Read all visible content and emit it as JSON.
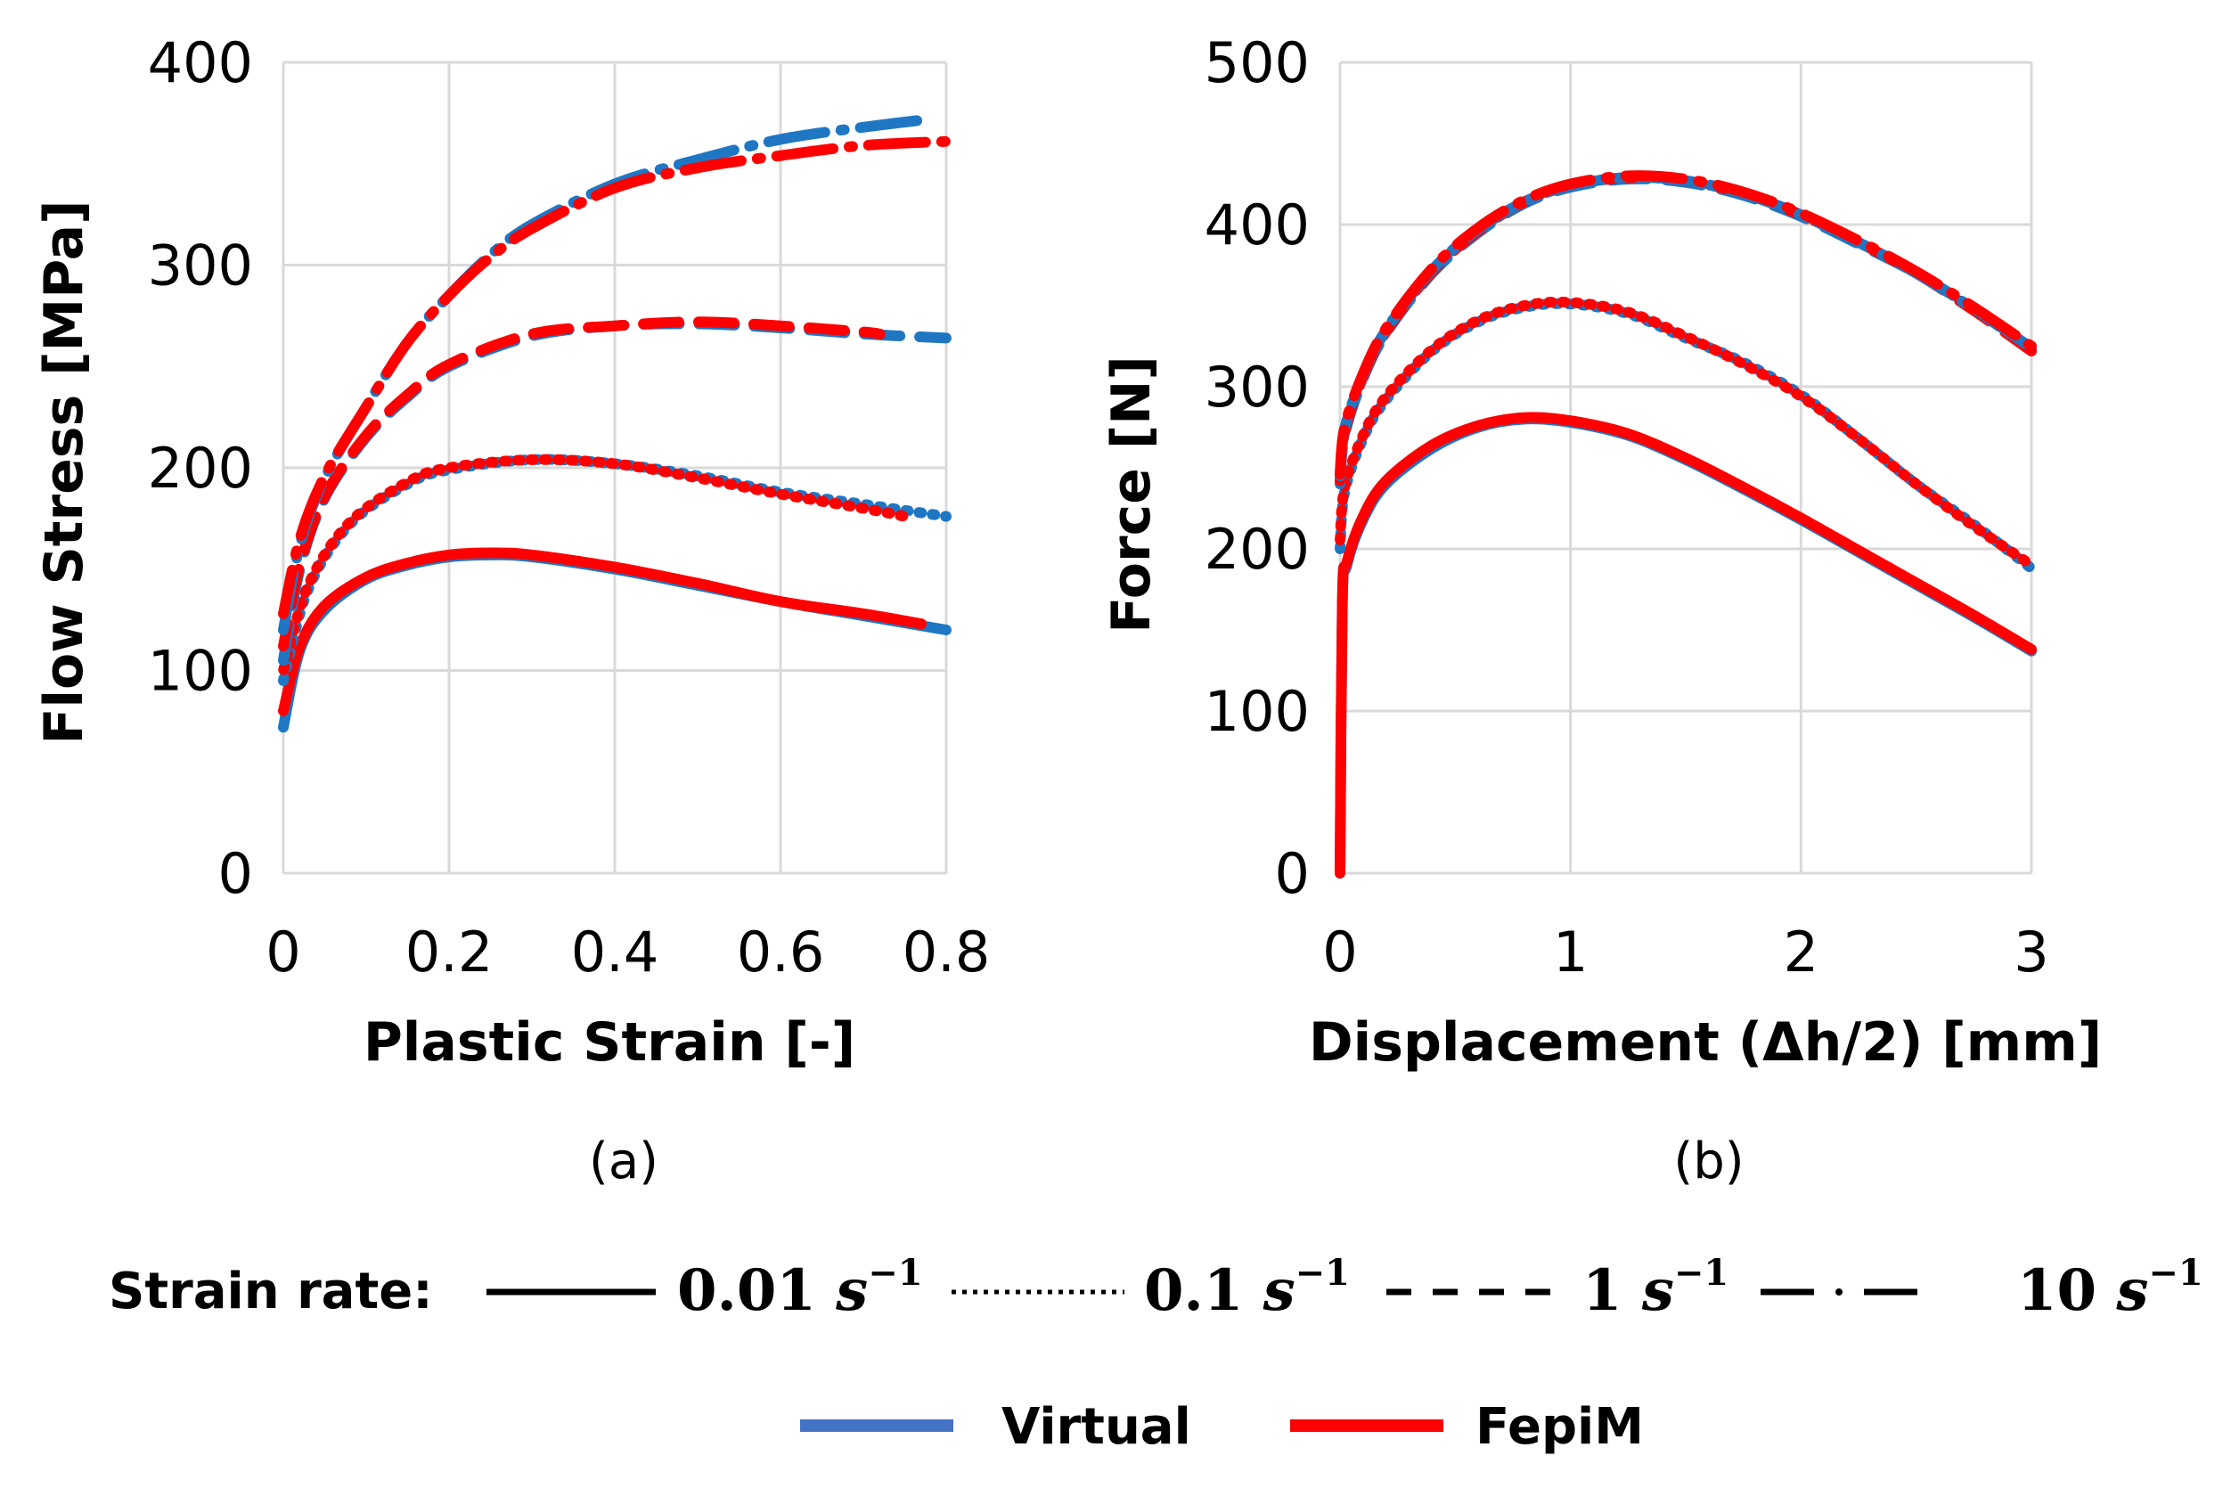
{
  "chart_data": [
    {
      "type": "line",
      "panel_label": "(a)",
      "xlabel": "Plastic Strain [-]",
      "ylabel": "Flow Stress [MPa]",
      "xlim": [
        0,
        0.8
      ],
      "ylim": [
        0,
        400
      ],
      "xticks": [
        "0",
        "0.2",
        "0.4",
        "0.6",
        "0.8"
      ],
      "yticks": [
        "0",
        "100",
        "200",
        "300",
        "400"
      ],
      "grid": true,
      "series": [
        {
          "name": "Virtual 0.01 s^-1",
          "model": "Virtual",
          "rate": "0.01",
          "x": [
            0,
            0.02,
            0.05,
            0.1,
            0.15,
            0.2,
            0.25,
            0.3,
            0.4,
            0.5,
            0.6,
            0.7,
            0.8
          ],
          "y": [
            72,
            110,
            130,
            145,
            152,
            156,
            157,
            156,
            150,
            142,
            134,
            127,
            120
          ]
        },
        {
          "name": "FepiM 0.01 s^-1",
          "model": "FepiM",
          "rate": "0.01",
          "x": [
            0,
            0.02,
            0.05,
            0.1,
            0.15,
            0.2,
            0.25,
            0.3,
            0.4,
            0.5,
            0.6,
            0.7,
            0.77
          ],
          "y": [
            80,
            112,
            132,
            146,
            153,
            157,
            158,
            157,
            151,
            143,
            134,
            128,
            123
          ]
        },
        {
          "name": "Virtual 0.1 s^-1",
          "model": "Virtual",
          "rate": "0.1",
          "x": [
            0,
            0.03,
            0.08,
            0.15,
            0.2,
            0.3,
            0.4,
            0.5,
            0.6,
            0.7,
            0.8
          ],
          "y": [
            95,
            140,
            172,
            192,
            199,
            204,
            202,
            196,
            188,
            182,
            176
          ]
        },
        {
          "name": "FepiM 0.1 s^-1",
          "model": "FepiM",
          "rate": "0.1",
          "x": [
            0,
            0.03,
            0.08,
            0.15,
            0.2,
            0.3,
            0.4,
            0.5,
            0.6,
            0.7,
            0.75
          ],
          "y": [
            100,
            142,
            173,
            193,
            200,
            204,
            202,
            195,
            187,
            180,
            176
          ]
        },
        {
          "name": "Virtual 1 s^-1",
          "model": "Virtual",
          "rate": "1",
          "x": [
            0,
            0.02,
            0.05,
            0.1,
            0.15,
            0.2,
            0.3,
            0.4,
            0.5,
            0.6,
            0.7,
            0.8
          ],
          "y": [
            105,
            150,
            185,
            215,
            235,
            250,
            265,
            270,
            271,
            269,
            266,
            264
          ]
        },
        {
          "name": "FepiM 1 s^-1",
          "model": "FepiM",
          "rate": "1",
          "x": [
            0,
            0.02,
            0.05,
            0.1,
            0.15,
            0.2,
            0.3,
            0.4,
            0.5,
            0.6,
            0.7,
            0.72
          ],
          "y": [
            112,
            152,
            186,
            216,
            236,
            251,
            266,
            270,
            272,
            270,
            267,
            266
          ]
        },
        {
          "name": "Virtual 10 s^-1",
          "model": "Virtual",
          "rate": "10",
          "x": [
            0,
            0.02,
            0.05,
            0.1,
            0.15,
            0.2,
            0.25,
            0.3,
            0.4,
            0.5,
            0.6,
            0.7,
            0.78
          ],
          "y": [
            120,
            162,
            195,
            230,
            262,
            285,
            305,
            320,
            340,
            352,
            362,
            368,
            372
          ]
        },
        {
          "name": "FepiM 10 s^-1",
          "model": "FepiM",
          "rate": "10",
          "x": [
            0,
            0.02,
            0.05,
            0.1,
            0.15,
            0.2,
            0.25,
            0.3,
            0.4,
            0.5,
            0.6,
            0.7,
            0.8
          ],
          "y": [
            128,
            165,
            196,
            230,
            262,
            285,
            304,
            318,
            338,
            348,
            354,
            359,
            361
          ]
        }
      ]
    },
    {
      "type": "line",
      "panel_label": "(b)",
      "xlabel": "Displacement (Δh/2) [mm]",
      "ylabel": "Force [N]",
      "xlim": [
        0,
        3
      ],
      "ylim": [
        0,
        500
      ],
      "xticks": [
        "0",
        "1",
        "2",
        "3"
      ],
      "yticks": [
        "0",
        "100",
        "200",
        "300",
        "400",
        "500"
      ],
      "grid": true,
      "series": [
        {
          "name": "Virtual 0.01 s^-1",
          "model": "Virtual",
          "rate": "0.01",
          "x": [
            0,
            0.01,
            0.03,
            0.1,
            0.2,
            0.4,
            0.6,
            0.8,
            1.0,
            1.25,
            1.5,
            1.75,
            2.0,
            2.25,
            2.5,
            2.75,
            3.0
          ],
          "y": [
            0,
            165,
            190,
            218,
            240,
            262,
            275,
            280,
            278,
            270,
            255,
            237,
            218,
            198,
            178,
            158,
            137
          ]
        },
        {
          "name": "FepiM 0.01 s^-1",
          "model": "FepiM",
          "rate": "0.01",
          "x": [
            0,
            0.01,
            0.03,
            0.1,
            0.2,
            0.4,
            0.6,
            0.8,
            1.0,
            1.25,
            1.5,
            1.75,
            2.0,
            2.25,
            2.5,
            2.75,
            3.0
          ],
          "y": [
            0,
            168,
            192,
            220,
            242,
            264,
            276,
            281,
            279,
            271,
            256,
            238,
            219,
            199,
            179,
            159,
            138
          ]
        },
        {
          "name": "Virtual 0.1 s^-1",
          "model": "Virtual",
          "rate": "0.1",
          "x": [
            0,
            0.02,
            0.1,
            0.2,
            0.4,
            0.6,
            0.8,
            1.0,
            1.25,
            1.5,
            1.75,
            2.0,
            2.25,
            2.5,
            2.75,
            3.0
          ],
          "y": [
            200,
            235,
            268,
            292,
            322,
            340,
            349,
            351,
            345,
            330,
            315,
            295,
            268,
            240,
            215,
            188
          ]
        },
        {
          "name": "FepiM 0.1 s^-1",
          "model": "FepiM",
          "rate": "0.1",
          "x": [
            0,
            0.02,
            0.1,
            0.2,
            0.4,
            0.6,
            0.8,
            1.0,
            1.25,
            1.5,
            1.75,
            2.0,
            2.25,
            2.5,
            2.75,
            3.0
          ],
          "y": [
            205,
            238,
            270,
            294,
            323,
            341,
            350,
            352,
            346,
            331,
            314,
            294,
            268,
            240,
            214,
            190
          ]
        },
        {
          "name": "Virtual 1 s^-1",
          "model": "Virtual",
          "rate": "1",
          "x": [
            0,
            0.02,
            0.1,
            0.2,
            0.4,
            0.6,
            0.8,
            1.0,
            1.25,
            1.5,
            1.75,
            2.0,
            2.25,
            2.5,
            2.75,
            3.0
          ],
          "y": [
            240,
            270,
            305,
            333,
            370,
            395,
            413,
            423,
            428,
            426,
            418,
            405,
            388,
            370,
            348,
            323
          ]
        },
        {
          "name": "FepiM 1 s^-1",
          "model": "FepiM",
          "rate": "1",
          "x": [
            0,
            0.02,
            0.1,
            0.2,
            0.4,
            0.6,
            0.8,
            1.0,
            1.25,
            1.5,
            1.75,
            2.0,
            2.25,
            2.5,
            2.75,
            3.0
          ],
          "y": [
            242,
            272,
            306,
            334,
            371,
            396,
            414,
            424,
            429,
            427,
            419,
            406,
            389,
            370,
            347,
            322
          ]
        },
        {
          "name": "Virtual 10 s^-1",
          "model": "Virtual",
          "rate": "10",
          "x": [
            0,
            0.02,
            0.1,
            0.2,
            0.4,
            0.6,
            0.8,
            1.0,
            1.25,
            1.5,
            1.75,
            2.0,
            2.25,
            2.5,
            2.75,
            3.0
          ],
          "y": [
            245,
            274,
            307,
            335,
            372,
            397,
            414,
            424,
            429,
            427,
            419,
            406,
            389,
            370,
            348,
            324
          ]
        },
        {
          "name": "FepiM 10 s^-1",
          "model": "FepiM",
          "rate": "10",
          "x": [
            0,
            0.02,
            0.1,
            0.2,
            0.4,
            0.6,
            0.8,
            1.0,
            1.25,
            1.5,
            1.75,
            2.0,
            2.25,
            2.5,
            2.75,
            3.0
          ],
          "y": [
            246,
            275,
            308,
            336,
            373,
            398,
            415,
            425,
            430,
            428,
            420,
            407,
            390,
            371,
            349,
            325
          ]
        }
      ]
    }
  ],
  "legend": {
    "strain_rate_label": "Strain rate:",
    "rates": [
      {
        "value": "0.01",
        "unit": "s",
        "exp": "−1",
        "style": "solid"
      },
      {
        "value": "0.1",
        "unit": "s",
        "exp": "−1",
        "style": "dotted"
      },
      {
        "value": "1",
        "unit": "s",
        "exp": "−1",
        "style": "dashed"
      },
      {
        "value": "10",
        "unit": "s",
        "exp": "−1",
        "style": "dashdot"
      }
    ],
    "models": [
      {
        "name": "Virtual",
        "color": "#4472c4"
      },
      {
        "name": "FepiM",
        "color": "#ff0000"
      }
    ]
  },
  "colors": {
    "virtual_line": "#1f77c4",
    "fepim_line": "#ff0000",
    "grid": "#d9d9d9"
  }
}
